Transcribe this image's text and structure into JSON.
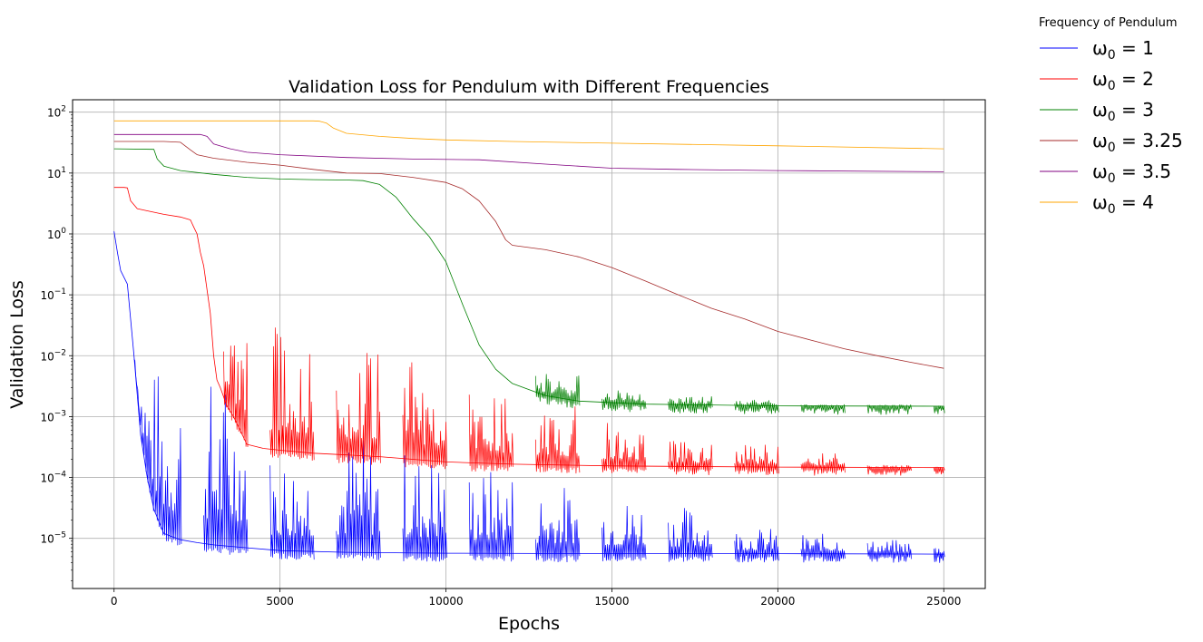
{
  "chart_data": {
    "type": "line",
    "title": "Validation Loss for Pendulum with Different Frequencies",
    "xlabel": "Epochs",
    "ylabel": "Validation Loss",
    "xlim": [
      -1250,
      26250
    ],
    "ylim": [
      1.5e-06,
      160
    ],
    "yscale": "log",
    "grid": true,
    "legend_title": "Frequency of Pendulum",
    "legend_placement": "outside top-right",
    "x_ticks": [
      0,
      5000,
      10000,
      15000,
      20000,
      25000
    ],
    "y_ticks": [
      {
        "value": 1e-05,
        "base": "10",
        "exp": "−5"
      },
      {
        "value": 0.0001,
        "base": "10",
        "exp": "−4"
      },
      {
        "value": 0.001,
        "base": "10",
        "exp": "−3"
      },
      {
        "value": 0.01,
        "base": "10",
        "exp": "−2"
      },
      {
        "value": 0.1,
        "base": "10",
        "exp": "−1"
      },
      {
        "value": 1,
        "base": "10",
        "exp": "0"
      },
      {
        "value": 10,
        "base": "10",
        "exp": "1"
      },
      {
        "value": 100,
        "base": "10",
        "exp": "2"
      }
    ],
    "series": [
      {
        "name": "ω0 = 1",
        "symbol": "ω",
        "sub": "0",
        "value_label": "= 1",
        "color": "#0000ff",
        "x": [
          0,
          100,
          200,
          400,
          600,
          800,
          1000,
          1200,
          1500,
          2000,
          2500,
          3000,
          4000,
          5000,
          7000,
          10000,
          15000,
          20000,
          25000
        ],
        "y": [
          1.1,
          0.5,
          0.25,
          0.15,
          0.01,
          0.0005,
          0.0001,
          3e-05,
          1.2e-05,
          9.5e-06,
          8.5e-06,
          7.8e-06,
          7e-06,
          6.3e-06,
          5.9e-06,
          5.7e-06,
          5.6e-06,
          5.6e-06,
          5.5e-06
        ],
        "spikes": [
          {
            "start": 600,
            "end": 2000,
            "peak": 0.007
          },
          {
            "start": 2700,
            "end": 4000,
            "peak": 0.005
          },
          {
            "start": 4700,
            "end": 6000,
            "peak": 0.0003
          },
          {
            "start": 6700,
            "end": 8000,
            "peak": 0.0005
          },
          {
            "start": 8700,
            "end": 10000,
            "peak": 0.0003
          },
          {
            "start": 10700,
            "end": 12000,
            "peak": 0.00015
          },
          {
            "start": 12700,
            "end": 14000,
            "peak": 8e-05
          },
          {
            "start": 14700,
            "end": 16000,
            "peak": 5e-05
          },
          {
            "start": 16700,
            "end": 18000,
            "peak": 3.5e-05
          },
          {
            "start": 18700,
            "end": 20000,
            "peak": 1.5e-05
          },
          {
            "start": 20700,
            "end": 22000,
            "peak": 1.2e-05
          },
          {
            "start": 22700,
            "end": 24000,
            "peak": 9.5e-06
          },
          {
            "start": 24700,
            "end": 25000,
            "peak": 8e-06
          }
        ]
      },
      {
        "name": "ω0 = 2",
        "symbol": "ω",
        "sub": "0",
        "value_label": "= 2",
        "color": "#ff0000",
        "x": [
          0,
          300,
          400,
          500,
          700,
          1000,
          1500,
          2000,
          2300,
          2400,
          2500,
          2600,
          2700,
          2900,
          3000,
          3100,
          3200,
          3400,
          3600,
          3800,
          4000,
          4500,
          5000,
          6000,
          8000,
          10000,
          12000,
          15000,
          20000,
          25000
        ],
        "y": [
          5.8,
          5.8,
          5.7,
          3.5,
          2.6,
          2.4,
          2.1,
          1.9,
          1.7,
          1.3,
          1.0,
          0.5,
          0.3,
          0.05,
          0.01,
          0.004,
          0.003,
          0.0015,
          0.001,
          0.0006,
          0.00035,
          0.0003,
          0.00028,
          0.00025,
          0.00022,
          0.00018,
          0.000165,
          0.000155,
          0.000148,
          0.000145
        ],
        "spikes": [
          {
            "start": 3300,
            "end": 4000,
            "peak": 0.04
          },
          {
            "start": 4700,
            "end": 6000,
            "peak": 0.035
          },
          {
            "start": 6700,
            "end": 8000,
            "peak": 0.012
          },
          {
            "start": 8700,
            "end": 10000,
            "peak": 0.01
          },
          {
            "start": 10700,
            "end": 12000,
            "peak": 0.0025
          },
          {
            "start": 12700,
            "end": 14000,
            "peak": 0.0016
          },
          {
            "start": 14700,
            "end": 16000,
            "peak": 0.0008
          },
          {
            "start": 16700,
            "end": 18000,
            "peak": 0.0004
          },
          {
            "start": 18700,
            "end": 20000,
            "peak": 0.00035
          },
          {
            "start": 20700,
            "end": 22000,
            "peak": 0.00025
          },
          {
            "start": 22700,
            "end": 24000,
            "peak": 0.00016
          },
          {
            "start": 24700,
            "end": 25000,
            "peak": 0.00015
          }
        ]
      },
      {
        "name": "ω0 = 3",
        "symbol": "ω",
        "sub": "0",
        "value_label": "= 3",
        "color": "#008000",
        "x": [
          0,
          1200,
          1300,
          1500,
          2000,
          3000,
          4000,
          5000,
          6000,
          7000,
          7500,
          8000,
          8500,
          9000,
          9500,
          10000,
          10500,
          11000,
          11500,
          12000,
          13000,
          14000,
          16000,
          18000,
          20000,
          25000
        ],
        "y": [
          25,
          24.5,
          17,
          13,
          11,
          9.5,
          8.5,
          8.0,
          7.8,
          7.7,
          7.5,
          6.5,
          4,
          1.8,
          0.9,
          0.35,
          0.07,
          0.015,
          0.006,
          0.0035,
          0.0022,
          0.0018,
          0.0016,
          0.00155,
          0.0015,
          0.00148
        ],
        "spikes": [
          {
            "start": 12700,
            "end": 14000,
            "peak": 0.005
          },
          {
            "start": 14700,
            "end": 16000,
            "peak": 0.0032
          },
          {
            "start": 16700,
            "end": 18000,
            "peak": 0.0022
          },
          {
            "start": 18700,
            "end": 20000,
            "peak": 0.0019
          },
          {
            "start": 20700,
            "end": 22000,
            "peak": 0.0016
          },
          {
            "start": 22700,
            "end": 24000,
            "peak": 0.00158
          },
          {
            "start": 24700,
            "end": 25000,
            "peak": 0.00152
          }
        ]
      },
      {
        "name": "ω0 = 3.25",
        "symbol": "ω",
        "sub": "0",
        "value_label": "= 3.25",
        "color": "#a52a2a",
        "x": [
          0,
          1500,
          2000,
          2300,
          2500,
          3000,
          4000,
          5000,
          6000,
          7000,
          8000,
          9000,
          10000,
          10500,
          11000,
          11500,
          11800,
          12000,
          13000,
          14000,
          15000,
          16000,
          17000,
          18000,
          19000,
          20000,
          21000,
          22000,
          23000,
          24000,
          25000
        ],
        "y": [
          33,
          33,
          32,
          24,
          20,
          17.5,
          15,
          13.5,
          11.5,
          10,
          9.8,
          8.5,
          7.0,
          5.5,
          3.5,
          1.6,
          0.8,
          0.65,
          0.55,
          0.42,
          0.28,
          0.17,
          0.1,
          0.06,
          0.04,
          0.025,
          0.018,
          0.013,
          0.01,
          0.0078,
          0.0062
        ]
      },
      {
        "name": "ω0 = 3.5",
        "symbol": "ω",
        "sub": "0",
        "value_label": "= 3.5",
        "color": "#800080",
        "x": [
          0,
          2600,
          2800,
          3000,
          3500,
          4000,
          5000,
          7000,
          9000,
          11000,
          13000,
          15000,
          17000,
          20000,
          25000
        ],
        "y": [
          43,
          43,
          40,
          30,
          25,
          22,
          20,
          18,
          17,
          16.5,
          14,
          12,
          11.5,
          11,
          10.5
        ]
      },
      {
        "name": "ω0 = 4",
        "symbol": "ω",
        "sub": "0",
        "value_label": "= 4",
        "color": "#ffa500",
        "x": [
          0,
          6000,
          6200,
          6400,
          6600,
          7000,
          8000,
          9000,
          10000,
          12000,
          15000,
          20000,
          25000
        ],
        "y": [
          72,
          72,
          71,
          66,
          55,
          45,
          40,
          37,
          35,
          33,
          31,
          28,
          25
        ]
      }
    ]
  }
}
